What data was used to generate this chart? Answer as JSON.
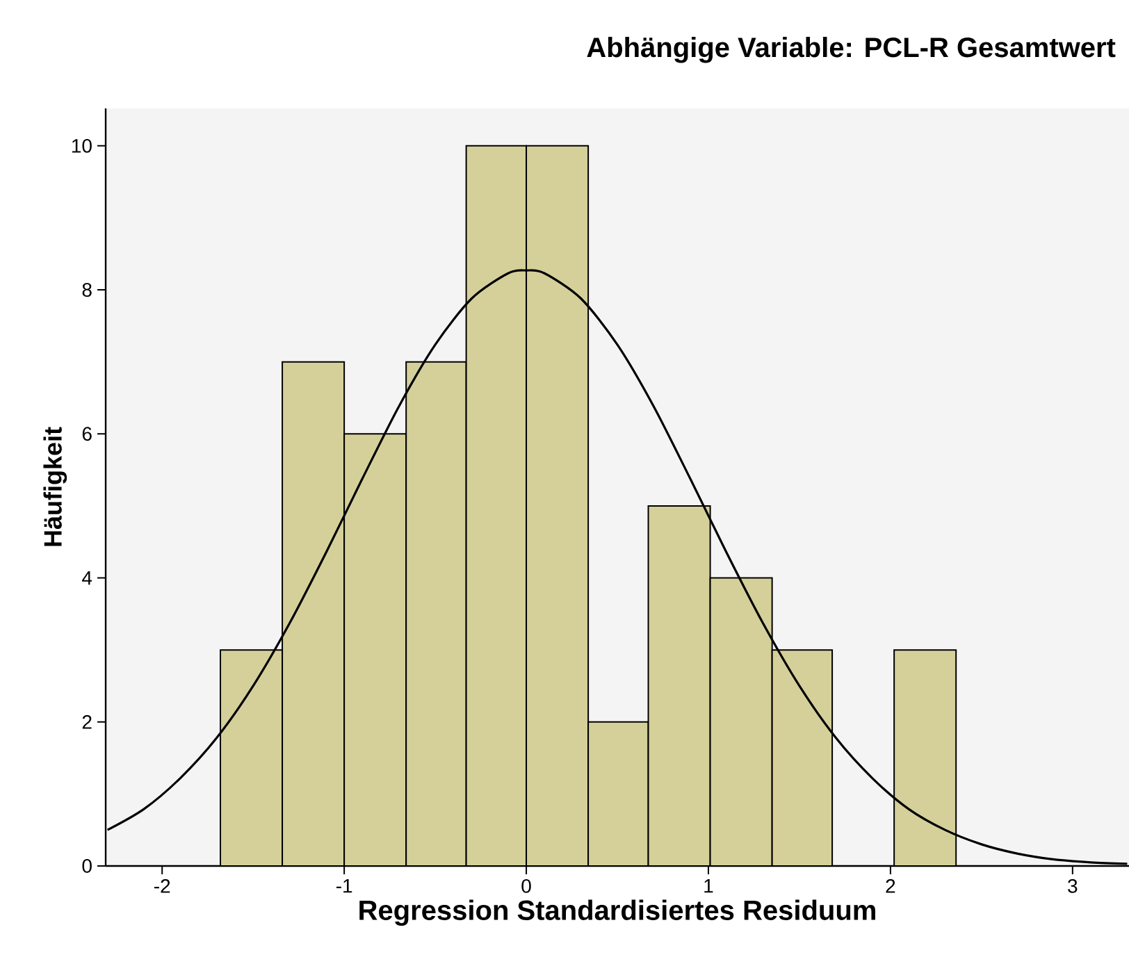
{
  "chart_data": {
    "type": "histogram",
    "title": "Abhängige Variable: PCL-R Gesamtwert",
    "xlabel": "Regression Standardisiertes Residuum",
    "ylabel": "Häufigkeit",
    "bins": [
      -1.68,
      -1.34,
      -1.0,
      -0.66,
      -0.33,
      0.0,
      0.34,
      0.67,
      1.01,
      1.35,
      1.68,
      2.02,
      2.36
    ],
    "values": [
      3,
      7,
      6,
      7,
      10,
      10,
      2,
      5,
      4,
      3,
      0,
      3
    ],
    "color": "#d5d09a",
    "series": [
      {
        "type": "line",
        "color": "#000000",
        "x": [
          -2.3,
          -2.1,
          -1.9,
          -1.7,
          -1.5,
          -1.3,
          -1.1,
          -0.9,
          -0.7,
          -0.5,
          -0.3,
          -0.1,
          0.0,
          0.1,
          0.3,
          0.5,
          0.7,
          0.9,
          1.1,
          1.3,
          1.5,
          1.7,
          1.9,
          2.1,
          2.3,
          2.5,
          2.7,
          2.9,
          3.1,
          3.3
        ],
        "values": [
          0.5,
          0.79,
          1.22,
          1.78,
          2.5,
          3.37,
          4.35,
          5.38,
          6.38,
          7.24,
          7.88,
          8.23,
          8.27,
          8.23,
          7.88,
          7.24,
          6.38,
          5.38,
          4.35,
          3.37,
          2.5,
          1.78,
          1.22,
          0.79,
          0.5,
          0.3,
          0.17,
          0.09,
          0.05,
          0.03
        ]
      }
    ],
    "xlim": [
      -2.31,
      3.31
    ],
    "ylim": [
      0,
      10.52
    ],
    "xticks": [
      -2,
      -1,
      0,
      1,
      2,
      3
    ],
    "yticks": [
      0,
      2,
      4,
      6,
      8,
      10
    ]
  }
}
